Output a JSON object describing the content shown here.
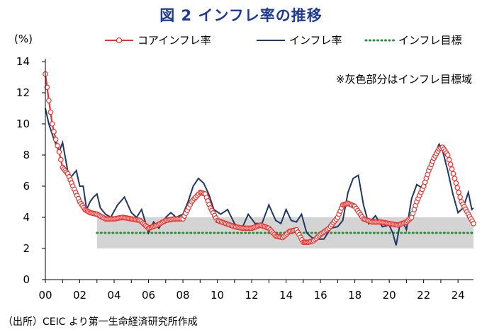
{
  "title": "図 2  インフレ率の推移",
  "source": "（出所）CEIC より第一生命経済研究所作成",
  "chart_data": {
    "type": "line",
    "title": "図 2  インフレ率の推移",
    "ylabel": "(%)",
    "xlabel": "",
    "ylim": [
      0,
      14
    ],
    "xlim": [
      2000,
      2024.9
    ],
    "y_ticks": [
      "0",
      "2",
      "4",
      "6",
      "8",
      "10",
      "12",
      "14"
    ],
    "x_ticks": [
      "00",
      "02",
      "04",
      "06",
      "08",
      "10",
      "12",
      "14",
      "16",
      "18",
      "20",
      "22",
      "24"
    ],
    "grid": false,
    "legend_position": "top",
    "annotation": "※灰色部分はインフレ目標域",
    "target_band": {
      "x_start": 2003.0,
      "x_end": 2024.9,
      "y_low": 2,
      "y_high": 4
    },
    "series": [
      {
        "name": "コアインフレ率",
        "color": "#e8332f",
        "marker": "circle",
        "x": [
          2000.0,
          2000.2,
          2000.4,
          2000.6,
          2000.8,
          2001.0,
          2001.3,
          2001.6,
          2002.0,
          2002.3,
          2002.6,
          2003.0,
          2003.5,
          2004.0,
          2004.5,
          2005.0,
          2005.5,
          2006.0,
          2006.5,
          2007.0,
          2007.5,
          2008.0,
          2008.5,
          2009.0,
          2009.3,
          2009.6,
          2010.0,
          2010.5,
          2011.0,
          2011.5,
          2012.0,
          2012.5,
          2013.0,
          2013.4,
          2013.8,
          2014.2,
          2014.6,
          2015.0,
          2015.3,
          2015.6,
          2016.0,
          2016.5,
          2017.0,
          2017.3,
          2017.6,
          2018.0,
          2018.5,
          2019.0,
          2019.5,
          2020.0,
          2020.5,
          2021.0,
          2021.3,
          2021.6,
          2022.0,
          2022.3,
          2022.6,
          2022.9,
          2023.1,
          2023.4,
          2023.8,
          2024.2,
          2024.6,
          2024.9
        ],
        "values": [
          13.2,
          11.5,
          10.0,
          9.0,
          8.2,
          7.2,
          6.8,
          6.0,
          5.0,
          4.5,
          4.3,
          4.2,
          3.9,
          3.9,
          4.0,
          3.9,
          3.8,
          3.3,
          3.5,
          3.8,
          3.9,
          3.9,
          5.0,
          5.6,
          5.5,
          4.6,
          3.8,
          3.6,
          3.4,
          3.3,
          3.3,
          3.5,
          3.3,
          2.8,
          2.7,
          3.1,
          3.2,
          2.4,
          2.4,
          2.5,
          2.9,
          3.3,
          4.0,
          4.8,
          4.9,
          4.7,
          3.9,
          3.7,
          3.7,
          3.6,
          3.5,
          3.7,
          4.0,
          5.0,
          6.0,
          7.0,
          7.8,
          8.4,
          8.5,
          8.0,
          6.5,
          5.0,
          4.2,
          3.6
        ]
      },
      {
        "name": "インフレ率",
        "color": "#1f3864",
        "marker": "none",
        "x": [
          2000.0,
          2000.2,
          2000.5,
          2000.8,
          2001.0,
          2001.3,
          2001.5,
          2001.8,
          2002.0,
          2002.2,
          2002.4,
          2002.6,
          2002.8,
          2003.0,
          2003.2,
          2003.5,
          2003.8,
          2004.2,
          2004.6,
          2005.0,
          2005.3,
          2005.6,
          2006.0,
          2006.3,
          2006.6,
          2007.0,
          2007.3,
          2007.6,
          2008.0,
          2008.3,
          2008.6,
          2008.9,
          2009.2,
          2009.5,
          2009.8,
          2010.2,
          2010.6,
          2011.0,
          2011.4,
          2011.8,
          2012.2,
          2012.6,
          2013.0,
          2013.4,
          2013.7,
          2014.0,
          2014.3,
          2014.6,
          2014.9,
          2015.2,
          2015.5,
          2015.8,
          2016.2,
          2016.6,
          2017.0,
          2017.3,
          2017.6,
          2017.9,
          2018.2,
          2018.5,
          2018.8,
          2019.2,
          2019.6,
          2020.0,
          2020.2,
          2020.4,
          2020.6,
          2020.8,
          2021.0,
          2021.3,
          2021.6,
          2021.9,
          2022.2,
          2022.5,
          2022.7,
          2022.9,
          2023.1,
          2023.4,
          2023.7,
          2024.0,
          2024.3,
          2024.6,
          2024.8,
          2024.9
        ],
        "values": [
          11.0,
          10.0,
          9.0,
          8.2,
          8.8,
          7.0,
          6.6,
          7.0,
          6.0,
          6.0,
          4.5,
          5.0,
          5.3,
          5.5,
          4.6,
          4.2,
          4.0,
          4.8,
          5.3,
          4.3,
          4.0,
          4.5,
          3.0,
          3.7,
          3.3,
          4.0,
          4.3,
          4.0,
          4.2,
          5.0,
          6.0,
          6.5,
          6.2,
          5.5,
          4.5,
          4.2,
          4.5,
          3.6,
          3.2,
          4.2,
          3.6,
          3.6,
          4.8,
          3.8,
          3.6,
          4.5,
          3.8,
          3.7,
          4.2,
          3.0,
          2.7,
          2.6,
          2.6,
          3.3,
          3.4,
          3.8,
          5.6,
          6.5,
          6.7,
          4.8,
          3.6,
          4.1,
          3.4,
          3.5,
          3.0,
          2.2,
          3.4,
          3.7,
          3.2,
          5.2,
          6.1,
          5.9,
          6.8,
          7.8,
          8.2,
          8.7,
          8.3,
          7.0,
          5.5,
          4.3,
          4.6,
          5.6,
          4.5,
          4.6
        ]
      },
      {
        "name": "インフレ目標",
        "color": "#2e8b3a",
        "marker": "none",
        "style": "dotted",
        "x": [
          2003.0,
          2024.9
        ],
        "values": [
          3,
          3
        ]
      }
    ]
  }
}
